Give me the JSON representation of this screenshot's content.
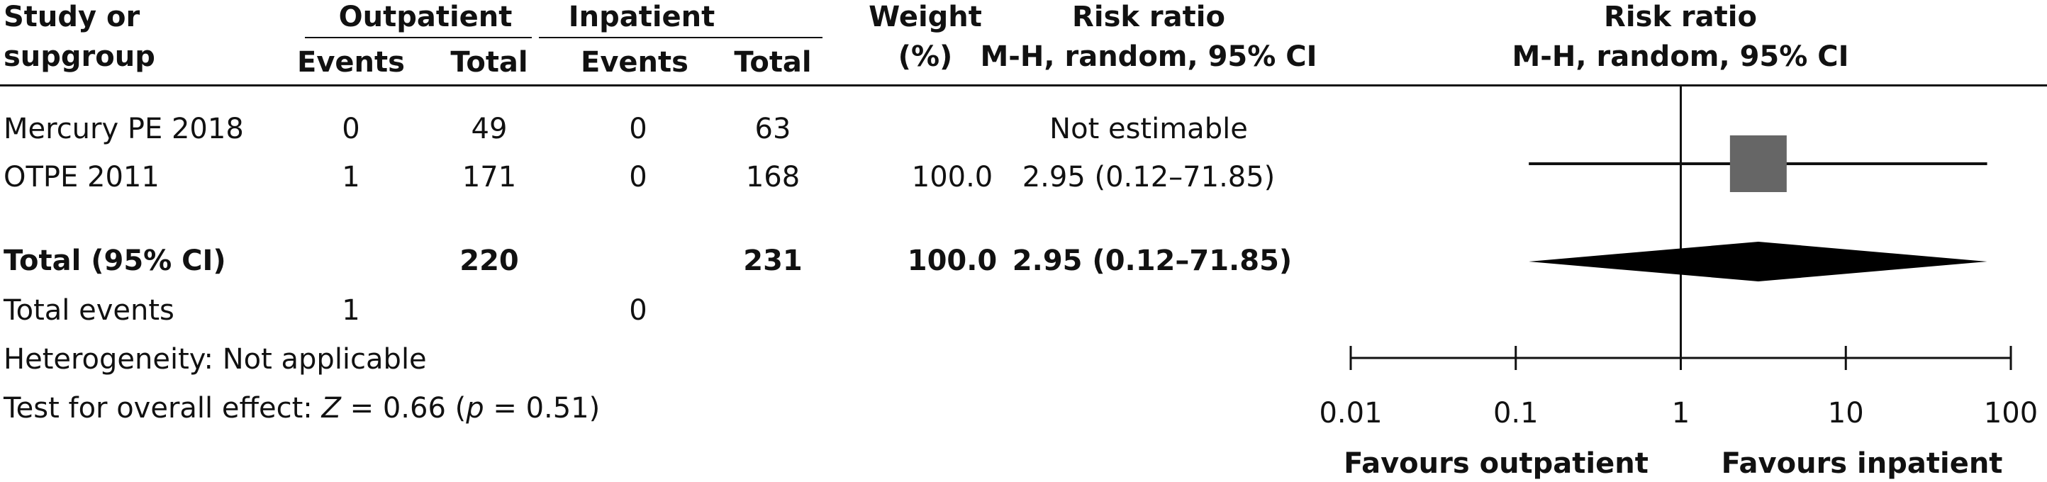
{
  "header": {
    "study_line1": "Study or",
    "study_line2": "supgroup",
    "group1": "Outpatient",
    "group2": "Inpatient",
    "events": "Events",
    "total": "Total",
    "weight_line1": "Weight",
    "weight_line2": "(%)",
    "rr_line1": "Risk ratio",
    "rr_line2": "M-H, random, 95% CI",
    "plot_line1": "Risk ratio",
    "plot_line2": "M-H, random, 95% CI"
  },
  "rows": [
    {
      "study": "Mercury PE 2018",
      "out_events": "0",
      "out_total": "49",
      "in_events": "0",
      "in_total": "63",
      "weight": "",
      "rr": "Not estimable"
    },
    {
      "study": "OTPE 2011",
      "out_events": "1",
      "out_total": "171",
      "in_events": "0",
      "in_total": "168",
      "weight": "100.0",
      "rr": "2.95 (0.12–71.85)"
    }
  ],
  "total_row": {
    "label": "Total (95% CI)",
    "out_total": "220",
    "in_total": "231",
    "weight": "100.0",
    "rr": "2.95 (0.12–71.85)"
  },
  "events_row": {
    "label": "Total events",
    "out_events": "1",
    "in_events": "0"
  },
  "heterogeneity": "Heterogeneity: Not applicable",
  "overall_effect": {
    "prefix": "Test for overall effect: ",
    "z_var": "Z",
    "z_text": " = 0.66 (",
    "p_var": "p",
    "p_text": " = 0.51)"
  },
  "axis": {
    "favours_left": "Favours outpatient",
    "favours_right": "Favours inpatient"
  },
  "chart_data": {
    "type": "forest",
    "scale": "log",
    "xlim": [
      0.01,
      100
    ],
    "ticks": [
      {
        "value": 0.01,
        "label": "0.01"
      },
      {
        "value": 0.1,
        "label": "0.1"
      },
      {
        "value": 1,
        "label": "1"
      },
      {
        "value": 10,
        "label": "10"
      },
      {
        "value": 100,
        "label": "100"
      }
    ],
    "null_line": 1,
    "studies": [
      {
        "name": "Mercury PE 2018",
        "estimate": null,
        "lower": null,
        "upper": null
      },
      {
        "name": "OTPE 2011",
        "estimate": 2.95,
        "lower": 0.12,
        "upper": 71.85,
        "weight": 100.0
      }
    ],
    "pooled": {
      "name": "Total (95% CI)",
      "estimate": 2.95,
      "lower": 0.12,
      "upper": 71.85
    },
    "colors": {
      "square": "#666666",
      "diamond": "#000000",
      "lines": "#111111"
    }
  }
}
